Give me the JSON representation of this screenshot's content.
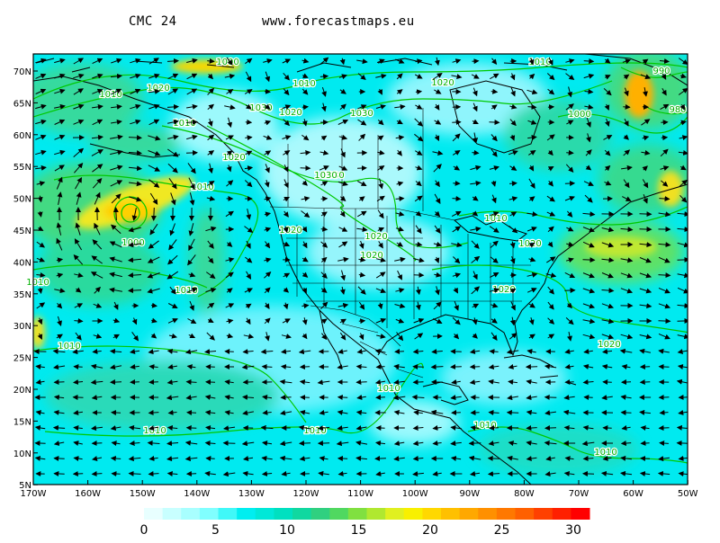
{
  "header": {
    "model": "CMC 24",
    "site": "www.forecastmaps.eu"
  },
  "map": {
    "lat_labels": [
      "70N",
      "65N",
      "60N",
      "55N",
      "50N",
      "45N",
      "40N",
      "35N",
      "30N",
      "25N",
      "20N",
      "15N",
      "10N",
      "5N"
    ],
    "lon_labels": [
      "170W",
      "160W",
      "150W",
      "140W",
      "130W",
      "120W",
      "110W",
      "100W",
      "90W",
      "80W",
      "70W",
      "60W",
      "50W"
    ],
    "isobar_labels": [
      "1000",
      "1010",
      "1020",
      "1030",
      "1020",
      "1010",
      "1030",
      "1020",
      "1030",
      "1010",
      "1020",
      "1030",
      "1010",
      "1000",
      "990",
      "980",
      "1020",
      "1020",
      "1020",
      "1010",
      "1030",
      "1010",
      "1020",
      "1000",
      "1010",
      "1010",
      "1010",
      "1020",
      "1020",
      "1010",
      "1010",
      "1010",
      "1010",
      "1010"
    ],
    "colors": {
      "calm": "#f0ffff",
      "base": "#00f0ee",
      "mid": "#30d890",
      "strong": "#ffe000",
      "max": "#ff2000",
      "isobar": "#00c800"
    }
  },
  "colorbar": {
    "labels": [
      "0",
      "5",
      "10",
      "15",
      "20",
      "25",
      "30"
    ],
    "colors": [
      "#e8ffff",
      "#c8ffff",
      "#a8ffff",
      "#80ffff",
      "#40f8f8",
      "#00eef0",
      "#00e8d8",
      "#00e0c0",
      "#10d8a0",
      "#30d080",
      "#50d860",
      "#80e040",
      "#b0e830",
      "#e0f020",
      "#f8f000",
      "#ffd800",
      "#ffc000",
      "#ffa800",
      "#ff9000",
      "#ff7800",
      "#ff6000",
      "#ff4000",
      "#ff2000",
      "#ff0000"
    ]
  }
}
